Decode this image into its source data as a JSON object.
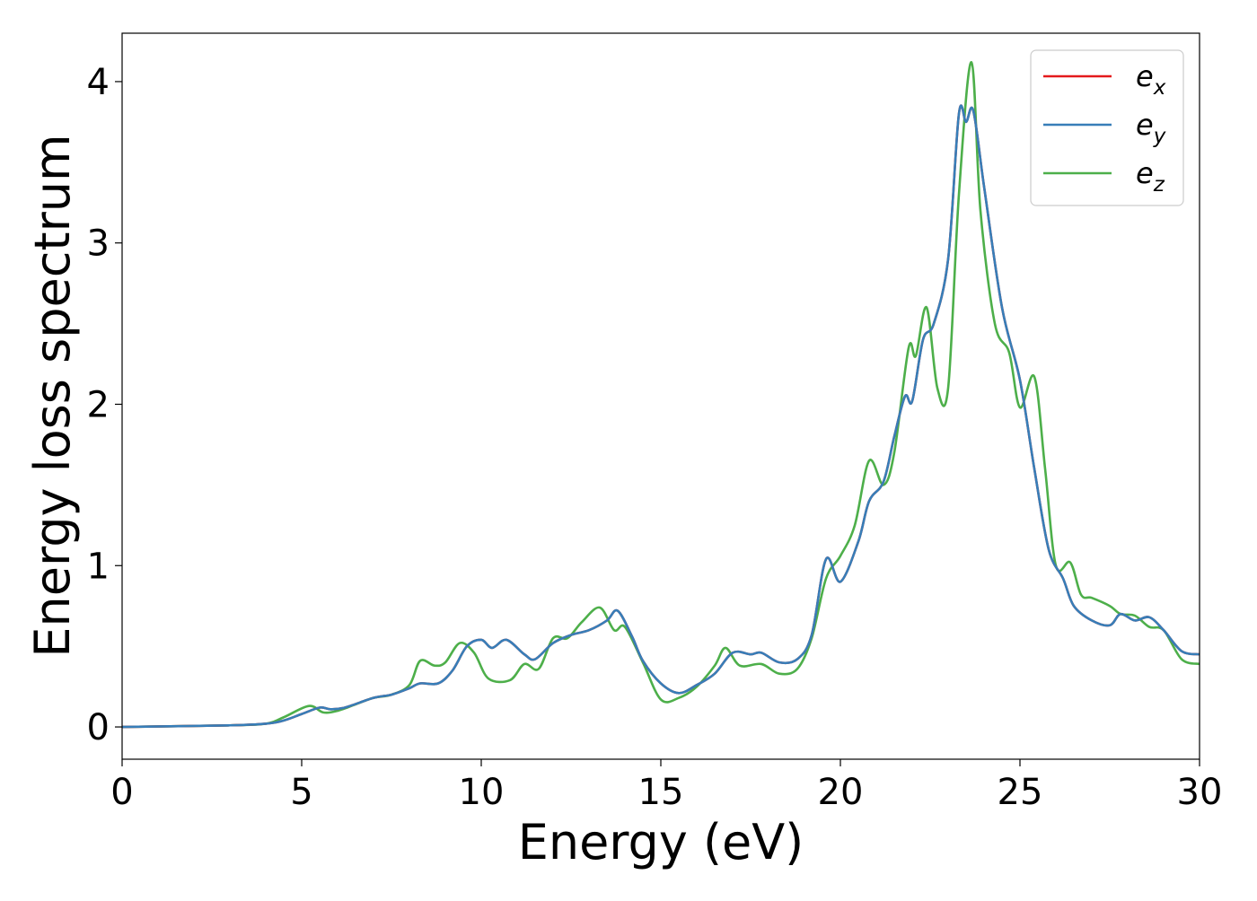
{
  "chart_data": {
    "type": "line",
    "title": "",
    "xlabel": "Energy (eV)",
    "ylabel": "Energy loss spectrum",
    "xlim": [
      0,
      30
    ],
    "ylim": [
      -0.2,
      4.3
    ],
    "xticks": [
      0,
      5,
      10,
      15,
      20,
      25,
      30
    ],
    "xtick_labels": [
      "0",
      "5",
      "10",
      "15",
      "20",
      "25",
      "30"
    ],
    "yticks": [
      0,
      1,
      2,
      3,
      4
    ],
    "ytick_labels": [
      "0",
      "1",
      "2",
      "3",
      "4"
    ],
    "grid": false,
    "legend_position": "top-right",
    "series": [
      {
        "name": "e_x",
        "legend_base": "e",
        "legend_sub": "x",
        "color": "#e41a1c",
        "x": [
          0,
          3,
          4,
          4.5,
          5,
          5.5,
          5.8,
          6.2,
          7,
          7.5,
          8,
          8.3,
          8.8,
          9.2,
          9.6,
          10,
          10.3,
          10.7,
          11.2,
          11.5,
          12,
          12.5,
          13,
          13.5,
          13.8,
          14.2,
          14.5,
          15,
          15.5,
          16,
          16.5,
          17,
          17.5,
          17.8,
          18.3,
          18.8,
          19.2,
          19.6,
          20,
          20.5,
          20.8,
          21.2,
          21.5,
          21.8,
          22,
          22.3,
          22.6,
          23,
          23.3,
          23.5,
          23.7,
          24,
          24.5,
          25,
          25.4,
          25.8,
          26.2,
          26.5,
          27,
          27.5,
          27.8,
          28.2,
          28.6,
          29,
          29.5,
          30
        ],
        "y": [
          0,
          0.01,
          0.02,
          0.04,
          0.08,
          0.12,
          0.11,
          0.12,
          0.18,
          0.2,
          0.24,
          0.27,
          0.27,
          0.35,
          0.5,
          0.54,
          0.49,
          0.54,
          0.45,
          0.42,
          0.52,
          0.57,
          0.6,
          0.66,
          0.72,
          0.56,
          0.41,
          0.27,
          0.21,
          0.26,
          0.33,
          0.46,
          0.45,
          0.46,
          0.4,
          0.42,
          0.57,
          1.04,
          0.9,
          1.15,
          1.4,
          1.52,
          1.8,
          2.05,
          2.02,
          2.4,
          2.5,
          2.9,
          3.8,
          3.75,
          3.82,
          3.35,
          2.6,
          2.15,
          1.6,
          1.1,
          0.92,
          0.75,
          0.66,
          0.63,
          0.7,
          0.66,
          0.68,
          0.6,
          0.47,
          0.45
        ]
      },
      {
        "name": "e_y",
        "legend_base": "e",
        "legend_sub": "y",
        "color": "#377eb8",
        "x": [
          0,
          3,
          4,
          4.5,
          5,
          5.5,
          5.8,
          6.2,
          7,
          7.5,
          8,
          8.3,
          8.8,
          9.2,
          9.6,
          10,
          10.3,
          10.7,
          11.2,
          11.5,
          12,
          12.5,
          13,
          13.5,
          13.8,
          14.2,
          14.5,
          15,
          15.5,
          16,
          16.5,
          17,
          17.5,
          17.8,
          18.3,
          18.8,
          19.2,
          19.6,
          20,
          20.5,
          20.8,
          21.2,
          21.5,
          21.8,
          22,
          22.3,
          22.6,
          23,
          23.3,
          23.5,
          23.7,
          24,
          24.5,
          25,
          25.4,
          25.8,
          26.2,
          26.5,
          27,
          27.5,
          27.8,
          28.2,
          28.6,
          29,
          29.5,
          30
        ],
        "y": [
          0,
          0.01,
          0.02,
          0.04,
          0.08,
          0.12,
          0.11,
          0.12,
          0.18,
          0.2,
          0.24,
          0.27,
          0.27,
          0.35,
          0.5,
          0.54,
          0.49,
          0.54,
          0.45,
          0.42,
          0.52,
          0.57,
          0.6,
          0.66,
          0.72,
          0.56,
          0.41,
          0.27,
          0.21,
          0.26,
          0.33,
          0.46,
          0.45,
          0.46,
          0.4,
          0.42,
          0.57,
          1.04,
          0.9,
          1.15,
          1.4,
          1.52,
          1.8,
          2.05,
          2.02,
          2.4,
          2.5,
          2.9,
          3.8,
          3.75,
          3.82,
          3.35,
          2.6,
          2.15,
          1.6,
          1.1,
          0.92,
          0.75,
          0.66,
          0.63,
          0.7,
          0.66,
          0.68,
          0.6,
          0.47,
          0.45
        ]
      },
      {
        "name": "e_z",
        "legend_base": "e",
        "legend_sub": "z",
        "color": "#4daf4a",
        "x": [
          0,
          3,
          4,
          4.5,
          5.2,
          5.6,
          6,
          6.5,
          7,
          7.5,
          8,
          8.3,
          8.7,
          9,
          9.4,
          9.8,
          10.2,
          10.8,
          11.2,
          11.6,
          12,
          12.4,
          12.8,
          13.3,
          13.7,
          14,
          14.5,
          15,
          15.5,
          16,
          16.5,
          16.8,
          17.2,
          17.8,
          18.3,
          18.8,
          19.2,
          19.6,
          20,
          20.4,
          20.8,
          21.2,
          21.5,
          21.9,
          22.1,
          22.4,
          22.7,
          23,
          23.3,
          23.65,
          23.9,
          24.3,
          24.7,
          25,
          25.4,
          25.7,
          26,
          26.4,
          26.7,
          27,
          27.5,
          27.8,
          28.2,
          28.6,
          29,
          29.5,
          30
        ],
        "y": [
          0,
          0.01,
          0.02,
          0.06,
          0.13,
          0.09,
          0.1,
          0.14,
          0.18,
          0.2,
          0.26,
          0.41,
          0.38,
          0.4,
          0.52,
          0.46,
          0.3,
          0.29,
          0.39,
          0.36,
          0.55,
          0.55,
          0.65,
          0.74,
          0.6,
          0.62,
          0.4,
          0.17,
          0.18,
          0.25,
          0.38,
          0.49,
          0.38,
          0.39,
          0.33,
          0.36,
          0.55,
          0.92,
          1.06,
          1.25,
          1.65,
          1.5,
          1.7,
          2.35,
          2.3,
          2.6,
          2.1,
          2.1,
          3.3,
          4.12,
          3.2,
          2.5,
          2.32,
          1.98,
          2.17,
          1.6,
          1.0,
          1.02,
          0.82,
          0.8,
          0.75,
          0.7,
          0.69,
          0.62,
          0.6,
          0.42,
          0.39
        ]
      }
    ]
  }
}
